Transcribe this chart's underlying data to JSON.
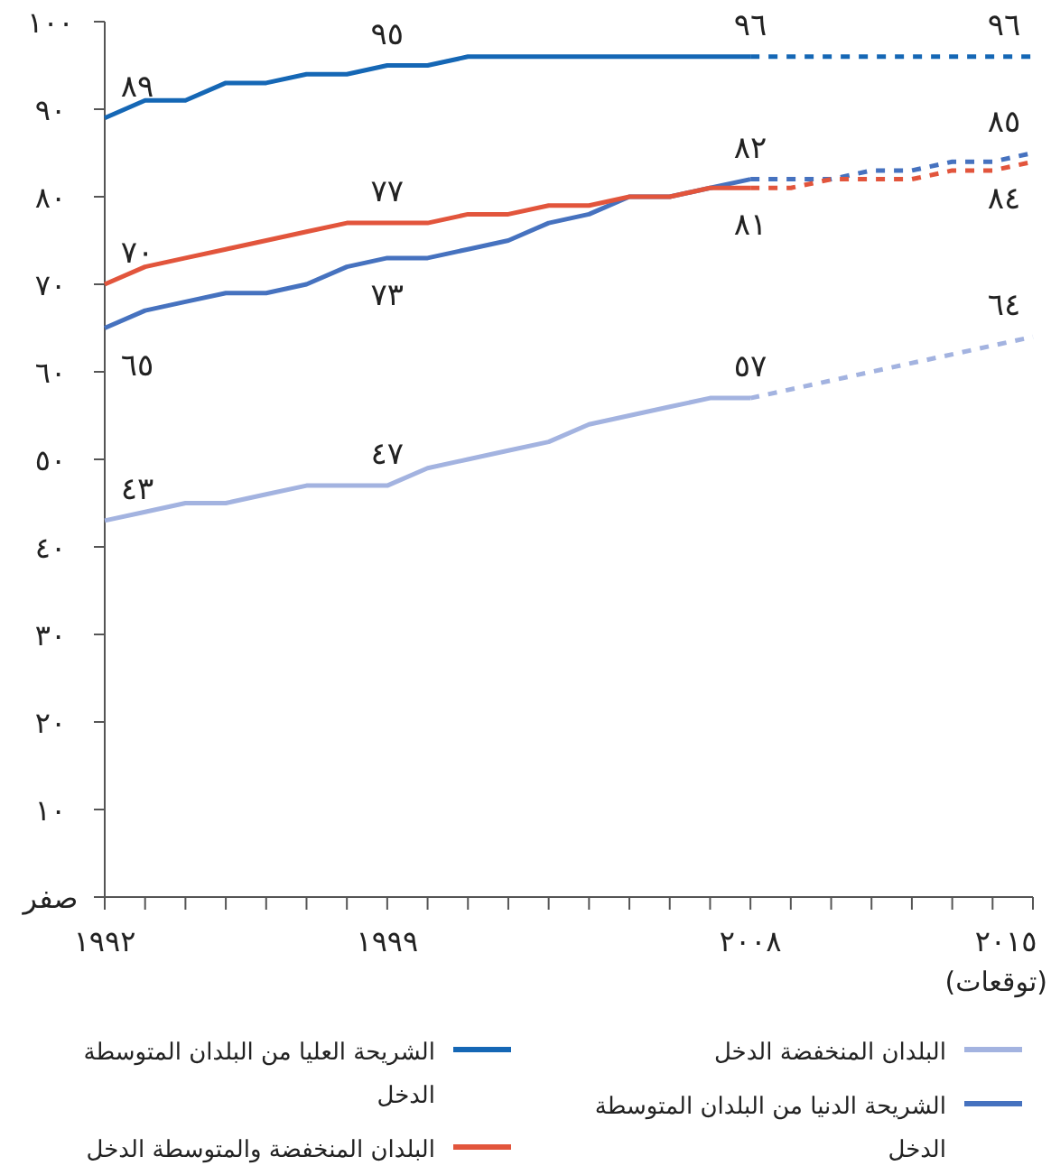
{
  "chart_data": {
    "type": "line",
    "xlim": [
      1992,
      2015
    ],
    "ylim": [
      0,
      100
    ],
    "xticks": [
      {
        "value": 1992,
        "label": "١٩٩٢"
      },
      {
        "value": 1993,
        "label": null
      },
      {
        "value": 1994,
        "label": null
      },
      {
        "value": 1995,
        "label": null
      },
      {
        "value": 1996,
        "label": null
      },
      {
        "value": 1997,
        "label": null
      },
      {
        "value": 1998,
        "label": null
      },
      {
        "value": 1999,
        "label": "١٩٩٩"
      },
      {
        "value": 2000,
        "label": null
      },
      {
        "value": 2001,
        "label": null
      },
      {
        "value": 2002,
        "label": null
      },
      {
        "value": 2003,
        "label": null
      },
      {
        "value": 2004,
        "label": null
      },
      {
        "value": 2005,
        "label": null
      },
      {
        "value": 2006,
        "label": null
      },
      {
        "value": 2007,
        "label": null
      },
      {
        "value": 2008,
        "label": "٢٠٠٨"
      },
      {
        "value": 2009,
        "label": null
      },
      {
        "value": 2010,
        "label": null
      },
      {
        "value": 2011,
        "label": null
      },
      {
        "value": 2012,
        "label": null
      },
      {
        "value": 2013,
        "label": null
      },
      {
        "value": 2014,
        "label": null
      },
      {
        "value": 2015,
        "label": "٢٠١٥"
      }
    ],
    "yticks": [
      {
        "value": 0,
        "label": "صفر"
      },
      {
        "value": 10,
        "label": "١٠"
      },
      {
        "value": 20,
        "label": "٢٠"
      },
      {
        "value": 30,
        "label": "٣٠"
      },
      {
        "value": 40,
        "label": "٤٠"
      },
      {
        "value": 50,
        "label": "٥٠"
      },
      {
        "value": 60,
        "label": "٦٠"
      },
      {
        "value": 70,
        "label": "٧٠"
      },
      {
        "value": 80,
        "label": "٨٠"
      },
      {
        "value": 90,
        "label": "٩٠"
      },
      {
        "value": 100,
        "label": "١٠٠"
      }
    ],
    "annotations": [
      "(توقعات)"
    ],
    "legend": "bottom",
    "marker": "none",
    "series": [
      {
        "name": "البلدان المنخفضة الدخل",
        "color": "#a3b3e0",
        "line_style": "solid",
        "x": [
          1992,
          1993,
          1994,
          1995,
          1996,
          1997,
          1998,
          1999,
          2000,
          2001,
          2002,
          2003,
          2004,
          2005,
          2006,
          2007,
          2008
        ],
        "values": [
          43,
          44,
          45,
          45,
          46,
          47,
          47,
          47,
          49,
          50,
          51,
          52,
          54,
          55,
          56,
          57,
          57
        ],
        "value_labels": [
          "٤٣",
          null,
          null,
          null,
          null,
          null,
          null,
          "٤٧",
          null,
          null,
          null,
          null,
          null,
          null,
          null,
          null,
          "٥٧"
        ]
      },
      {
        "name": "الشريحة الدنيا من البلدان المتوسطة الدخل",
        "color": "#4672bf",
        "line_style": "solid",
        "x": [
          1992,
          1993,
          1994,
          1995,
          1996,
          1997,
          1998,
          1999,
          2000,
          2001,
          2002,
          2003,
          2004,
          2005,
          2006,
          2007,
          2008
        ],
        "values": [
          65,
          67,
          68,
          69,
          69,
          70,
          72,
          73,
          73,
          74,
          75,
          77,
          78,
          80,
          80,
          81,
          82
        ],
        "value_labels": [
          "٦٥",
          null,
          null,
          null,
          null,
          null,
          null,
          "٧٣",
          null,
          null,
          null,
          null,
          null,
          null,
          null,
          null,
          "٨٢"
        ]
      },
      {
        "name": "الشريحة العليا من البلدان المتوسطة الدخل",
        "color": "#1567b5",
        "line_style": "solid",
        "x": [
          1992,
          1993,
          1994,
          1995,
          1996,
          1997,
          1998,
          1999,
          2000,
          2001,
          2002,
          2003,
          2004,
          2005,
          2006,
          2007,
          2008
        ],
        "values": [
          89,
          91,
          91,
          93,
          93,
          94,
          94,
          95,
          95,
          96,
          96,
          96,
          96,
          96,
          96,
          96,
          96
        ],
        "value_labels": [
          "٨٩",
          null,
          null,
          null,
          null,
          null,
          null,
          "٩٥",
          null,
          null,
          null,
          null,
          null,
          null,
          null,
          null,
          "٩٦"
        ]
      },
      {
        "name": "البلدان المنخفضة والمتوسطة الدخل",
        "color": "#e2553c",
        "line_style": "solid",
        "x": [
          1992,
          1993,
          1994,
          1995,
          1996,
          1997,
          1998,
          1999,
          2000,
          2001,
          2002,
          2003,
          2004,
          2005,
          2006,
          2007,
          2008
        ],
        "values": [
          70,
          72,
          73,
          74,
          75,
          76,
          77,
          77,
          77,
          78,
          78,
          79,
          79,
          80,
          80,
          81,
          81
        ],
        "value_labels": [
          "٧٠",
          null,
          null,
          null,
          null,
          null,
          null,
          "٧٧",
          null,
          null,
          null,
          null,
          null,
          null,
          null,
          null,
          "٨١"
        ]
      },
      {
        "color": "#a3b3e0",
        "line_style": "dashed",
        "x": [
          2008,
          2015
        ],
        "values": [
          57,
          64
        ],
        "value_labels": [
          null,
          "٦٤"
        ]
      },
      {
        "color": "#4672bf",
        "line_style": "dashed",
        "x": [
          2008,
          2009,
          2010,
          2011,
          2012,
          2013,
          2014,
          2015
        ],
        "values": [
          82,
          82,
          82,
          83,
          83,
          84,
          84,
          85
        ],
        "value_labels": [
          null,
          null,
          null,
          null,
          null,
          null,
          null,
          "٨٥"
        ]
      },
      {
        "color": "#1567b5",
        "line_style": "dashed",
        "x": [
          2008,
          2015
        ],
        "values": [
          96,
          96
        ],
        "value_labels": [
          null,
          "٩٦"
        ]
      },
      {
        "color": "#e2553c",
        "line_style": "dashed",
        "x": [
          2008,
          2009,
          2010,
          2011,
          2012,
          2013,
          2014,
          2015
        ],
        "values": [
          81,
          81,
          82,
          82,
          82,
          83,
          83,
          84
        ],
        "value_labels": [
          null,
          null,
          null,
          null,
          null,
          null,
          null,
          "٨٤"
        ]
      }
    ]
  }
}
